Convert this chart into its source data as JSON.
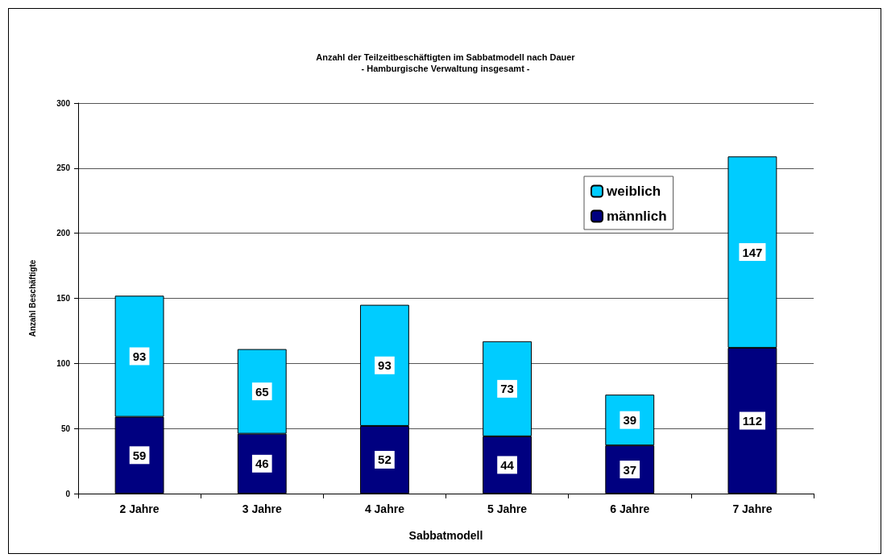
{
  "chart_data": {
    "type": "bar",
    "title": "Anzahl der Teilzeitbeschäftigten im Sabbatmodell nach Dauer",
    "subtitle": "- Hamburgische Verwaltung insgesamt -",
    "xlabel": "Sabbatmodell",
    "ylabel": "Anzahl Beschäftigte",
    "categories": [
      "2 Jahre",
      "3 Jahre",
      "4 Jahre",
      "5 Jahre",
      "6 Jahre",
      "7 Jahre"
    ],
    "series": [
      {
        "name": "männlich",
        "color": "#000080",
        "values": [
          59,
          46,
          52,
          44,
          37,
          112
        ]
      },
      {
        "name": "weiblich",
        "color": "#00ccff",
        "values": [
          93,
          65,
          93,
          73,
          39,
          147
        ]
      }
    ],
    "stacked": true,
    "ylim": [
      0,
      300
    ],
    "yticks": [
      0,
      50,
      100,
      150,
      200,
      250,
      300
    ],
    "grid": "y",
    "legend": "top right",
    "data_labels": true
  }
}
